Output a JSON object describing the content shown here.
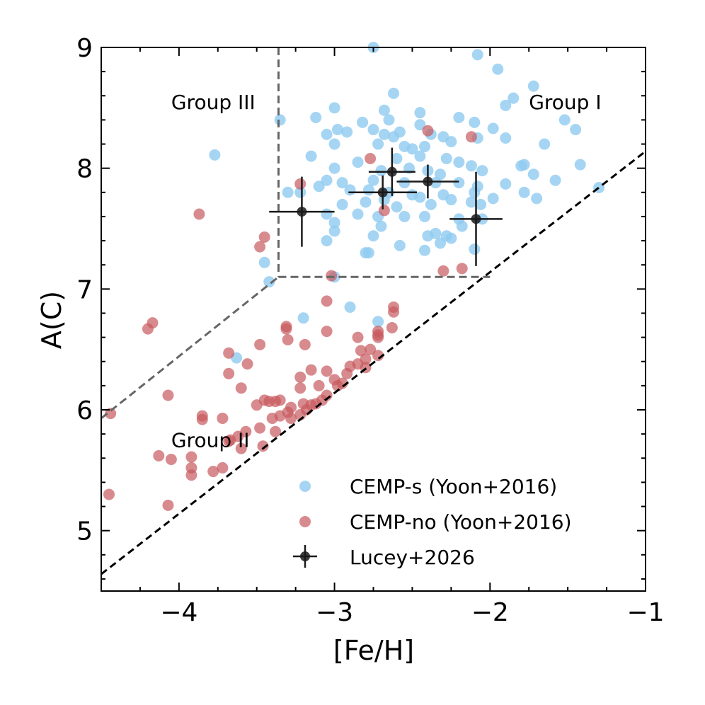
{
  "chart_data": {
    "type": "scatter",
    "xlabel": "[Fe/H]",
    "ylabel": "A(C)",
    "xlim": [
      -4.5,
      -1.0
    ],
    "ylim": [
      4.5,
      9.0
    ],
    "xticks": [
      -4,
      -3,
      -2,
      -1
    ],
    "xtick_labels": [
      "−4",
      "−3",
      "−2",
      "−1"
    ],
    "yticks": [
      5,
      6,
      7,
      8,
      9
    ],
    "ytick_labels": [
      "5",
      "6",
      "7",
      "8",
      "9"
    ],
    "group_labels": [
      {
        "text": "Group III",
        "x": -4.05,
        "y": 8.55
      },
      {
        "text": "Group I",
        "x": -1.75,
        "y": 8.55
      },
      {
        "text": "Group II",
        "x": -4.05,
        "y": 5.75
      }
    ],
    "region_lines": [
      {
        "name": "group-iii-boundary",
        "x": [
          -3.36,
          -3.36
        ],
        "y": [
          9.0,
          7.1
        ]
      },
      {
        "name": "group-i-boundary",
        "x": [
          -3.36,
          -2.0
        ],
        "y": [
          7.1,
          7.1
        ]
      },
      {
        "name": "group-ii-boundary",
        "x": [
          -4.5,
          -3.36
        ],
        "y": [
          5.93,
          7.1
        ]
      },
      {
        "name": "cemp-threshold",
        "x": [
          -4.5,
          -1.0
        ],
        "y": [
          4.64,
          8.14
        ],
        "style": "black"
      }
    ],
    "legend": [
      {
        "label": "CEMP-s (Yoon+2016)",
        "kind": "s"
      },
      {
        "label": "CEMP-no (Yoon+2016)",
        "kind": "no"
      },
      {
        "label": "Lucey+2026",
        "kind": "lucey"
      }
    ],
    "colors": {
      "cemp_s": "#8ecbf0",
      "cemp_no": "#c85a5e",
      "lucey": "#1a1a1a"
    },
    "series": [
      {
        "name": "CEMP-s (Yoon+2016)",
        "points": [
          [
            -2.75,
            9.0
          ],
          [
            -2.08,
            8.94
          ],
          [
            -1.95,
            8.82
          ],
          [
            -1.72,
            8.68
          ],
          [
            -2.62,
            8.62
          ],
          [
            -1.85,
            8.58
          ],
          [
            -3.0,
            8.5
          ],
          [
            -2.68,
            8.48
          ],
          [
            -2.45,
            8.46
          ],
          [
            -3.12,
            8.42
          ],
          [
            -2.65,
            8.4
          ],
          [
            -2.2,
            8.42
          ],
          [
            -1.9,
            8.52
          ],
          [
            -2.82,
            8.38
          ],
          [
            -2.1,
            8.38
          ],
          [
            -2.98,
            8.32
          ],
          [
            -3.35,
            8.4
          ],
          [
            -2.92,
            8.3
          ],
          [
            -2.75,
            8.32
          ],
          [
            -2.58,
            8.3
          ],
          [
            -2.45,
            8.36
          ],
          [
            -1.98,
            8.33
          ],
          [
            -1.52,
            8.4
          ],
          [
            -1.45,
            8.32
          ],
          [
            -3.05,
            8.28
          ],
          [
            -2.68,
            8.28
          ],
          [
            -2.62,
            8.26
          ],
          [
            -2.38,
            8.28
          ],
          [
            -2.3,
            8.26
          ],
          [
            -2.08,
            8.25
          ],
          [
            -1.9,
            8.25
          ],
          [
            -3.0,
            8.2
          ],
          [
            -2.72,
            8.2
          ],
          [
            -2.55,
            8.18
          ],
          [
            -2.5,
            8.16
          ],
          [
            -2.42,
            8.18
          ],
          [
            -2.25,
            8.22
          ],
          [
            -1.65,
            8.2
          ],
          [
            -3.15,
            8.1
          ],
          [
            -2.85,
            8.05
          ],
          [
            -2.6,
            8.08
          ],
          [
            -2.45,
            8.1
          ],
          [
            -2.28,
            8.08
          ],
          [
            -2.2,
            8.05
          ],
          [
            -2.12,
            8.02
          ],
          [
            -1.8,
            8.02
          ],
          [
            -1.78,
            8.03
          ],
          [
            -1.42,
            8.03
          ],
          [
            -3.0,
            8.0
          ],
          [
            -2.7,
            7.98
          ],
          [
            -2.52,
            8.0
          ],
          [
            -2.4,
            7.98
          ],
          [
            -2.32,
            7.95
          ],
          [
            -2.05,
            7.98
          ],
          [
            -1.72,
            7.95
          ],
          [
            -3.05,
            7.9
          ],
          [
            -2.95,
            7.88
          ],
          [
            -2.75,
            7.9
          ],
          [
            -2.55,
            7.88
          ],
          [
            -2.35,
            7.88
          ],
          [
            -2.2,
            7.88
          ],
          [
            -1.58,
            7.9
          ],
          [
            -3.3,
            7.8
          ],
          [
            -3.22,
            7.8
          ],
          [
            -3.1,
            7.85
          ],
          [
            -2.9,
            7.82
          ],
          [
            -2.78,
            7.82
          ],
          [
            -2.65,
            7.8
          ],
          [
            -2.5,
            7.78
          ],
          [
            -2.45,
            7.76
          ],
          [
            -2.3,
            7.78
          ],
          [
            -1.9,
            7.87
          ],
          [
            -1.78,
            7.8
          ],
          [
            -1.3,
            7.84
          ],
          [
            -2.95,
            7.7
          ],
          [
            -2.8,
            7.72
          ],
          [
            -2.68,
            7.74
          ],
          [
            -2.6,
            7.68
          ],
          [
            -2.38,
            7.7
          ],
          [
            -2.12,
            7.72
          ],
          [
            -1.98,
            7.75
          ],
          [
            -2.08,
            7.85
          ],
          [
            -2.1,
            7.8
          ],
          [
            -2.25,
            7.74
          ],
          [
            -2.06,
            7.7
          ],
          [
            -1.7,
            7.75
          ],
          [
            -3.05,
            7.62
          ],
          [
            -2.85,
            7.62
          ],
          [
            -2.72,
            7.6
          ],
          [
            -2.55,
            7.6
          ],
          [
            -2.42,
            7.6
          ],
          [
            -2.2,
            7.58
          ],
          [
            -2.05,
            7.58
          ],
          [
            -3.0,
            7.55
          ],
          [
            -2.7,
            7.52
          ],
          [
            -2.18,
            7.52
          ],
          [
            -3.0,
            7.48
          ],
          [
            -2.75,
            7.44
          ],
          [
            -2.35,
            7.46
          ],
          [
            -2.4,
            7.44
          ],
          [
            -2.28,
            7.44
          ],
          [
            -2.25,
            7.42
          ],
          [
            -3.05,
            7.4
          ],
          [
            -2.58,
            7.36
          ],
          [
            -2.32,
            7.38
          ],
          [
            -2.42,
            7.32
          ],
          [
            -2.1,
            7.33
          ],
          [
            -2.8,
            7.3
          ],
          [
            -2.78,
            7.3
          ],
          [
            -3.45,
            7.22
          ],
          [
            -3.42,
            7.06
          ],
          [
            -3.77,
            8.11
          ],
          [
            -3.0,
            7.1
          ],
          [
            -2.9,
            6.85
          ],
          [
            -3.2,
            6.76
          ],
          [
            -2.72,
            6.73
          ],
          [
            -3.63,
            6.43
          ]
        ]
      },
      {
        "name": "CEMP-no (Yoon+2016)",
        "points": [
          [
            -2.4,
            8.31
          ],
          [
            -2.12,
            8.26
          ],
          [
            -2.77,
            8.08
          ],
          [
            -3.22,
            7.87
          ],
          [
            -3.87,
            7.62
          ],
          [
            -2.68,
            7.65
          ],
          [
            -3.45,
            7.43
          ],
          [
            -3.48,
            7.35
          ],
          [
            -2.3,
            7.15
          ],
          [
            -2.18,
            7.17
          ],
          [
            -3.02,
            7.11
          ],
          [
            -3.05,
            6.9
          ],
          [
            -2.62,
            6.85
          ],
          [
            -2.62,
            6.81
          ],
          [
            -4.17,
            6.72
          ],
          [
            -4.2,
            6.67
          ],
          [
            -3.31,
            6.69
          ],
          [
            -3.31,
            6.67
          ],
          [
            -3.05,
            6.65
          ],
          [
            -2.72,
            6.65
          ],
          [
            -2.72,
            6.62
          ],
          [
            -2.63,
            6.68
          ],
          [
            -2.85,
            6.6
          ],
          [
            -2.72,
            6.6
          ],
          [
            -3.3,
            6.58
          ],
          [
            -3.68,
            6.47
          ],
          [
            -3.48,
            6.54
          ],
          [
            -3.19,
            6.54
          ],
          [
            -2.83,
            6.49
          ],
          [
            -2.77,
            6.5
          ],
          [
            -2.72,
            6.45
          ],
          [
            -2.8,
            6.42
          ],
          [
            -2.85,
            6.38
          ],
          [
            -2.8,
            6.35
          ],
          [
            -2.9,
            6.36
          ],
          [
            -2.92,
            6.3
          ],
          [
            -3.05,
            6.32
          ],
          [
            -3.15,
            6.33
          ],
          [
            -3.56,
            6.38
          ],
          [
            -3.68,
            6.3
          ],
          [
            -3.0,
            6.25
          ],
          [
            -2.95,
            6.22
          ],
          [
            -2.98,
            6.2
          ],
          [
            -3.1,
            6.2
          ],
          [
            -3.22,
            6.27
          ],
          [
            -3.22,
            6.18
          ],
          [
            -3.6,
            6.18
          ],
          [
            -4.07,
            6.12
          ],
          [
            -3.05,
            6.12
          ],
          [
            -3.08,
            6.08
          ],
          [
            -3.12,
            6.05
          ],
          [
            -3.45,
            6.08
          ],
          [
            -3.42,
            6.07
          ],
          [
            -3.38,
            6.07
          ],
          [
            -3.35,
            6.08
          ],
          [
            -3.2,
            6.05
          ],
          [
            -3.15,
            6.04
          ],
          [
            -3.5,
            6.04
          ],
          [
            -3.28,
            6.02
          ],
          [
            -3.18,
            6.0
          ],
          [
            -3.3,
            5.98
          ],
          [
            -3.22,
            5.96
          ],
          [
            -3.35,
            5.95
          ],
          [
            -3.28,
            5.93
          ],
          [
            -3.4,
            5.93
          ],
          [
            -3.85,
            5.95
          ],
          [
            -3.85,
            5.92
          ],
          [
            -3.72,
            5.93
          ],
          [
            -3.48,
            5.85
          ],
          [
            -3.57,
            5.82
          ],
          [
            -3.38,
            5.82
          ],
          [
            -3.62,
            5.78
          ],
          [
            -3.68,
            5.74
          ],
          [
            -3.67,
            5.75
          ],
          [
            -3.6,
            5.68
          ],
          [
            -3.46,
            5.7
          ],
          [
            -4.13,
            5.62
          ],
          [
            -4.05,
            5.59
          ],
          [
            -3.92,
            5.61
          ],
          [
            -3.92,
            5.52
          ],
          [
            -3.92,
            5.46
          ],
          [
            -3.78,
            5.49
          ],
          [
            -3.72,
            5.52
          ],
          [
            -4.44,
            5.97
          ],
          [
            -4.45,
            5.3
          ],
          [
            -4.07,
            5.21
          ]
        ]
      },
      {
        "name": "Lucey+2026",
        "points": [
          {
            "x": -3.21,
            "y": 7.64,
            "xerr": 0.21,
            "yerr": 0.29
          },
          {
            "x": -2.63,
            "y": 7.97,
            "xerr": 0.15,
            "yerr": 0.2
          },
          {
            "x": -2.69,
            "y": 7.8,
            "xerr": 0.22,
            "yerr": 0.14
          },
          {
            "x": -2.4,
            "y": 7.89,
            "xerr": 0.2,
            "yerr": 0.14
          },
          {
            "x": -2.09,
            "y": 7.58,
            "xerr": 0.17,
            "yerr": 0.39
          }
        ]
      }
    ]
  }
}
